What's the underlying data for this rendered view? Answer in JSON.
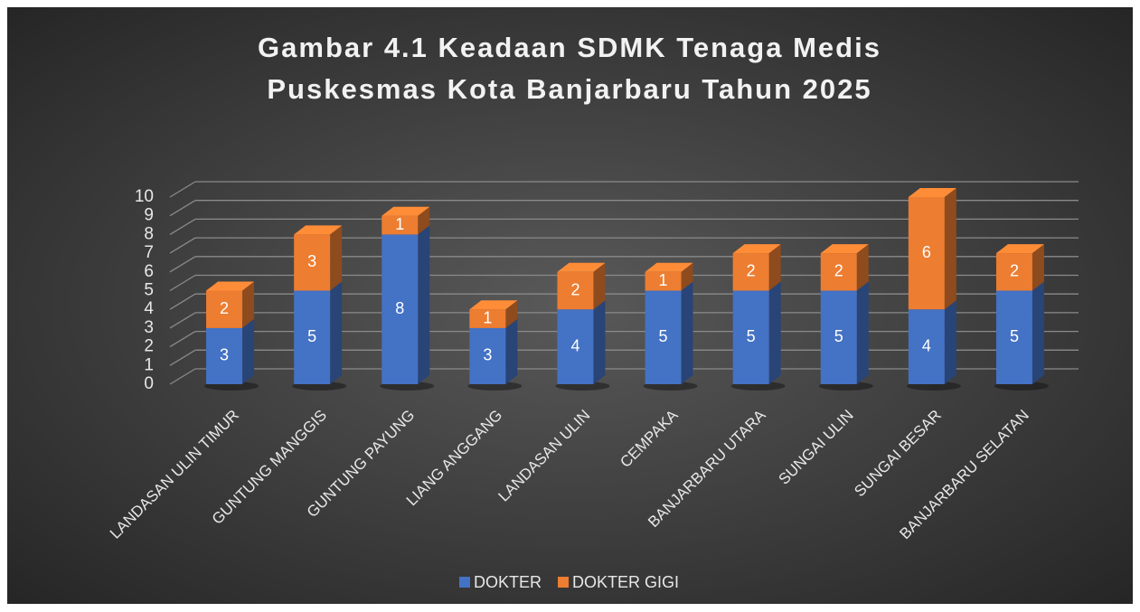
{
  "chart_data": {
    "type": "bar3d_stacked",
    "title": [
      "Gambar 4.1 Keadaan SDMK Tenaga Medis",
      "Puskesmas Kota Banjarbaru Tahun 2025"
    ],
    "categories": [
      "LANDASAN ULIN TIMUR",
      "GUNTUNG MANGGIS",
      "GUNTUNG PAYUNG",
      "LIANG ANGGANG",
      "LANDASAN ULIN",
      "CEMPAKA",
      "BANJARBARU UTARA",
      "SUNGAI ULIN",
      "SUNGAI BESAR",
      "BANJARBARU SELATAN"
    ],
    "series": [
      {
        "name": "DOKTER",
        "color": "#4472c4",
        "values": [
          3,
          5,
          8,
          3,
          4,
          5,
          5,
          5,
          4,
          5
        ]
      },
      {
        "name": "DOKTER GIGI",
        "color": "#ed7d31",
        "values": [
          2,
          3,
          1,
          1,
          2,
          1,
          2,
          2,
          6,
          2
        ]
      }
    ],
    "ylim": [
      0,
      10
    ],
    "yticks": [
      0,
      1,
      2,
      3,
      4,
      5,
      6,
      7,
      8,
      9,
      10
    ],
    "grid": true,
    "legend": "bottom"
  }
}
